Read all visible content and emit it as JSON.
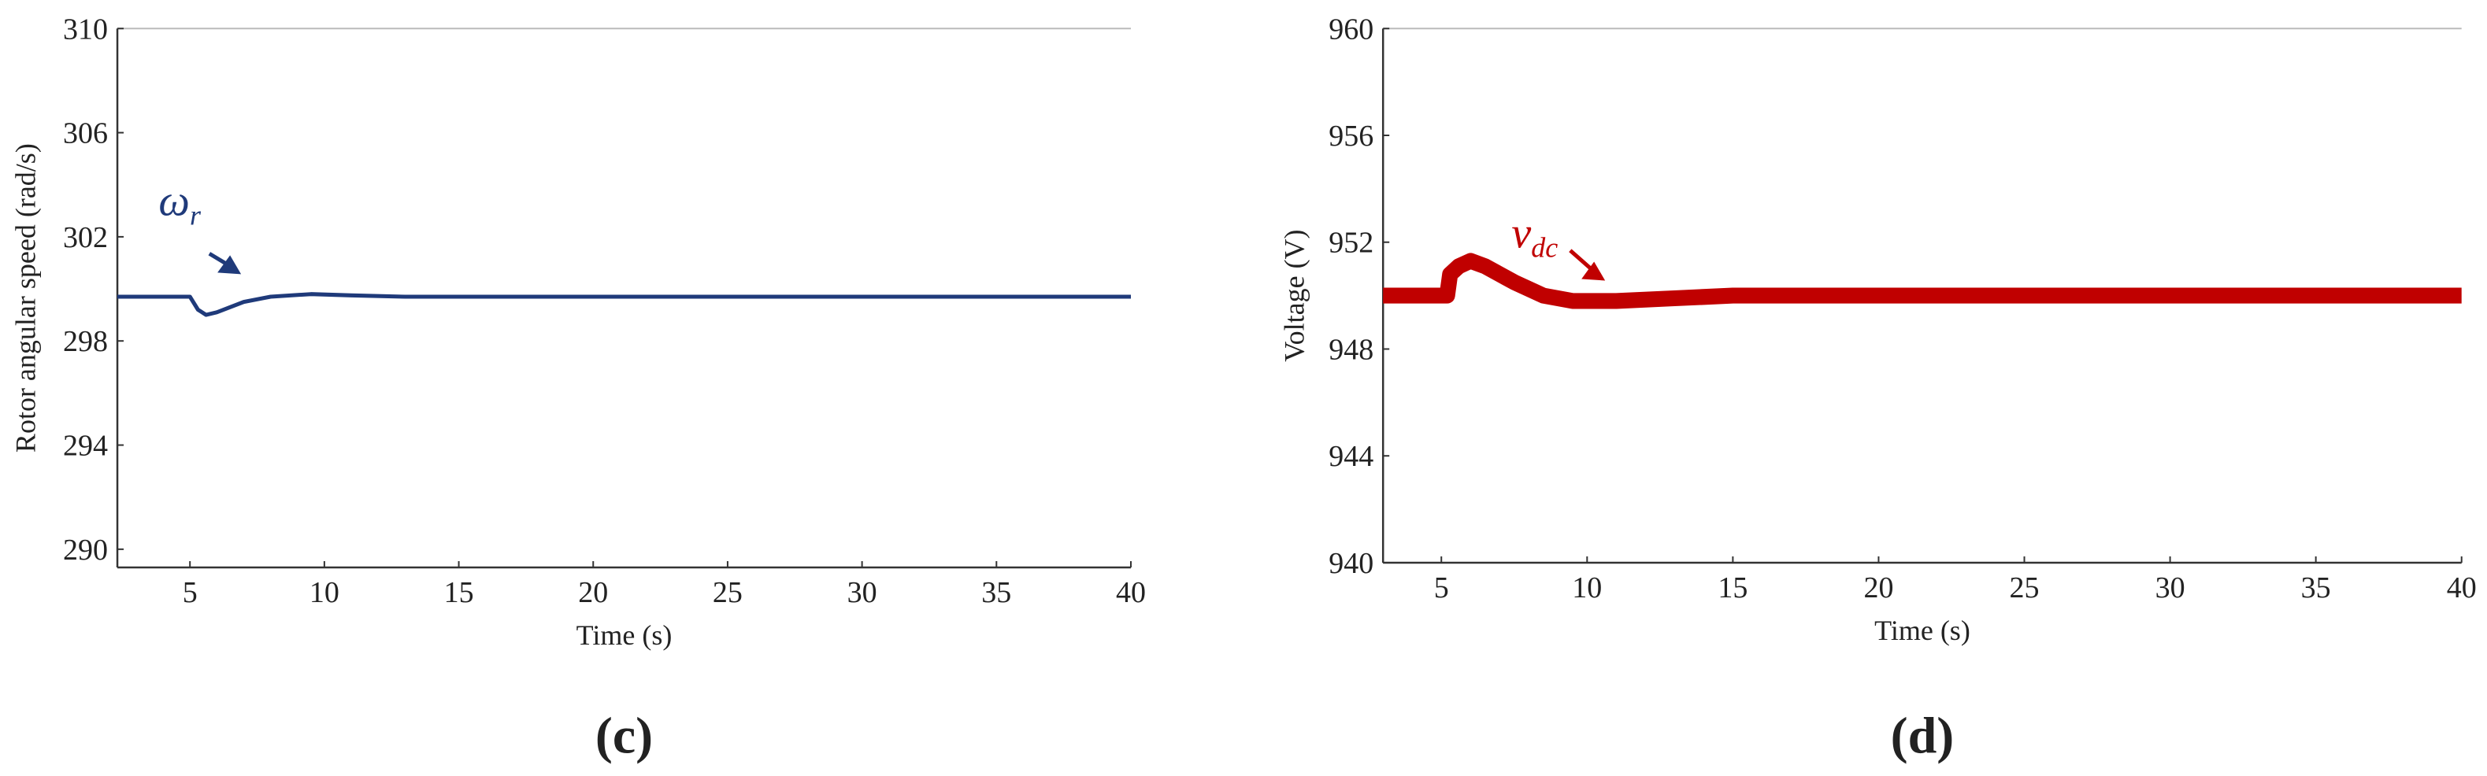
{
  "chart_data": [
    {
      "type": "line",
      "label": "(c)",
      "xlabel": "Time (s)",
      "ylabel": "Rotor angular speed (rad/s)",
      "xlim": [
        2.3,
        40
      ],
      "xticks": [
        5,
        10,
        15,
        20,
        25,
        30,
        35,
        40
      ],
      "ylim": [
        289.3,
        310
      ],
      "yticks": [
        290,
        294,
        298,
        302,
        306,
        310
      ],
      "annotation": {
        "text": "ω",
        "sub": "r"
      },
      "series": [
        {
          "name": "ωr",
          "color": "#1f3a7a",
          "x": [
            2.3,
            5,
            5.3,
            5.6,
            6,
            7,
            8,
            9.5,
            11,
            13,
            40
          ],
          "values": [
            299.7,
            299.7,
            299.2,
            299.0,
            299.1,
            299.5,
            299.7,
            299.8,
            299.75,
            299.7,
            299.7
          ]
        }
      ]
    },
    {
      "type": "line",
      "label": "(d)",
      "xlabel": "Time (s)",
      "ylabel": "Voltage (V)",
      "xlim": [
        3,
        40
      ],
      "xticks": [
        5,
        10,
        15,
        20,
        25,
        30,
        35,
        40
      ],
      "ylim": [
        940,
        960
      ],
      "yticks": [
        940,
        944,
        948,
        952,
        956,
        960
      ],
      "annotation": {
        "text": "v",
        "sub": "dc"
      },
      "series": [
        {
          "name": "vdc",
          "color": "#c00000",
          "x": [
            3,
            5.2,
            5.3,
            5.6,
            6,
            6.5,
            7.5,
            8.5,
            9.5,
            11,
            13,
            15,
            40
          ],
          "values": [
            950,
            950,
            950.8,
            951.1,
            951.3,
            951.1,
            950.5,
            950,
            949.8,
            949.8,
            949.9,
            950,
            950
          ]
        }
      ]
    }
  ]
}
